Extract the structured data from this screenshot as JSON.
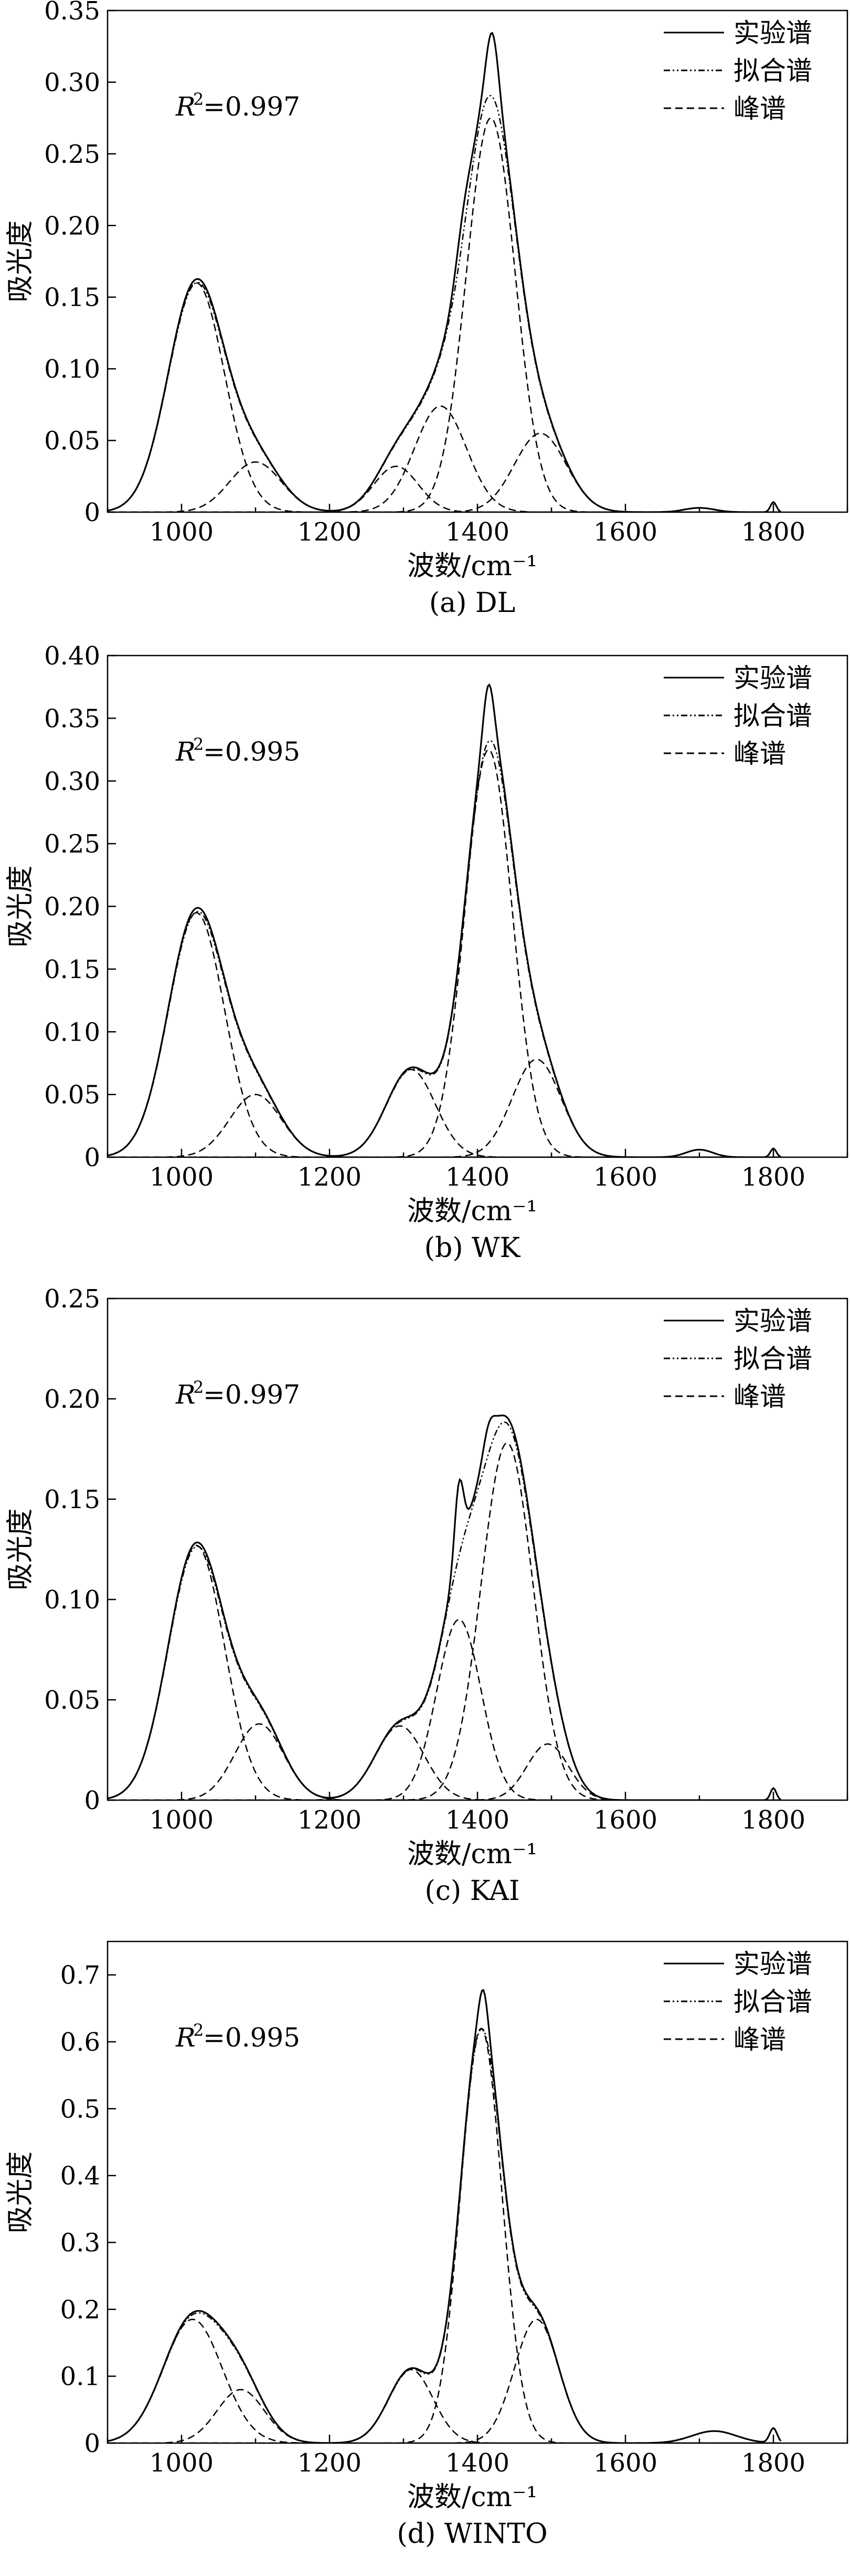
{
  "chart_data": [
    {
      "type": "line",
      "caption": "(a) DL",
      "xlabel": "波数/cm⁻¹",
      "ylabel": "吸光度",
      "xlim": [
        900,
        1900
      ],
      "ylim": [
        0,
        0.35
      ],
      "xticks": [
        1000,
        1200,
        1400,
        1600,
        1800
      ],
      "yticks": [
        0,
        0.05,
        0.1,
        0.15,
        0.2,
        0.25,
        0.3,
        0.35
      ],
      "ytick_labels": [
        "0",
        "0.05",
        "0.10",
        "0.15",
        "0.20",
        "0.25",
        "0.30",
        "0.35"
      ],
      "xtick_labels": [
        "1000",
        "1200",
        "1400",
        "1600",
        "1800"
      ],
      "r2_symbol": "R",
      "r2_sup": "2",
      "r2_value": "=0.997",
      "legend": [
        "实验谱",
        "拟合谱",
        "峰谱"
      ],
      "peaks": [
        {
          "center": 1020,
          "height": 0.16,
          "width": 38
        },
        {
          "center": 1100,
          "height": 0.035,
          "width": 35
        },
        {
          "center": 1290,
          "height": 0.032,
          "width": 30
        },
        {
          "center": 1350,
          "height": 0.074,
          "width": 35
        },
        {
          "center": 1418,
          "height": 0.275,
          "width": 33
        },
        {
          "center": 1485,
          "height": 0.055,
          "width": 35
        }
      ],
      "experimental_extras": [
        {
          "center": 1420,
          "height": 0.04,
          "width": 8
        },
        {
          "center": 1380,
          "height": 0.015,
          "width": 10
        },
        {
          "center": 1700,
          "height": 0.003,
          "width": 20
        },
        {
          "center": 1800,
          "height": 0.007,
          "width": 4
        }
      ]
    },
    {
      "type": "line",
      "caption": "(b) WK",
      "xlabel": "波数/cm⁻¹",
      "ylabel": "吸光度",
      "xlim": [
        900,
        1900
      ],
      "ylim": [
        0,
        0.4
      ],
      "xticks": [
        1000,
        1200,
        1400,
        1600,
        1800
      ],
      "yticks": [
        0,
        0.05,
        0.1,
        0.15,
        0.2,
        0.25,
        0.3,
        0.35,
        0.4
      ],
      "ytick_labels": [
        "0",
        "0.05",
        "0.10",
        "0.15",
        "0.20",
        "0.25",
        "0.30",
        "0.35",
        "0.40"
      ],
      "xtick_labels": [
        "1000",
        "1200",
        "1400",
        "1600",
        "1800"
      ],
      "r2_symbol": "R",
      "r2_sup": "2",
      "r2_value": "=0.995",
      "legend": [
        "实验谱",
        "拟合谱",
        "峰谱"
      ],
      "peaks": [
        {
          "center": 1020,
          "height": 0.195,
          "width": 38
        },
        {
          "center": 1100,
          "height": 0.05,
          "width": 35
        },
        {
          "center": 1310,
          "height": 0.07,
          "width": 33
        },
        {
          "center": 1415,
          "height": 0.325,
          "width": 32
        },
        {
          "center": 1480,
          "height": 0.078,
          "width": 33
        }
      ],
      "experimental_extras": [
        {
          "center": 1415,
          "height": 0.04,
          "width": 7
        },
        {
          "center": 1700,
          "height": 0.006,
          "width": 18
        },
        {
          "center": 1800,
          "height": 0.007,
          "width": 4
        }
      ]
    },
    {
      "type": "line",
      "caption": "(c) KAI",
      "xlabel": "波数/cm⁻¹",
      "ylabel": "吸光度",
      "xlim": [
        900,
        1900
      ],
      "ylim": [
        0,
        0.25
      ],
      "xticks": [
        1000,
        1200,
        1400,
        1600,
        1800
      ],
      "yticks": [
        0,
        0.05,
        0.1,
        0.15,
        0.2,
        0.25
      ],
      "ytick_labels": [
        "0",
        "0.05",
        "0.10",
        "0.15",
        "0.20",
        "0.25"
      ],
      "xtick_labels": [
        "1000",
        "1200",
        "1400",
        "1600",
        "1800"
      ],
      "r2_symbol": "R",
      "r2_sup": "2",
      "r2_value": "=0.997",
      "legend": [
        "实验谱",
        "拟合谱",
        "峰谱"
      ],
      "peaks": [
        {
          "center": 1020,
          "height": 0.127,
          "width": 38
        },
        {
          "center": 1105,
          "height": 0.038,
          "width": 33
        },
        {
          "center": 1295,
          "height": 0.037,
          "width": 33
        },
        {
          "center": 1375,
          "height": 0.09,
          "width": 30
        },
        {
          "center": 1440,
          "height": 0.178,
          "width": 35
        },
        {
          "center": 1495,
          "height": 0.028,
          "width": 28
        }
      ],
      "experimental_extras": [
        {
          "center": 1375,
          "height": 0.035,
          "width": 6
        },
        {
          "center": 1415,
          "height": 0.012,
          "width": 8
        },
        {
          "center": 1800,
          "height": 0.006,
          "width": 4
        }
      ]
    },
    {
      "type": "line",
      "caption": "(d) WINTO",
      "xlabel": "波数/cm⁻¹",
      "ylabel": "吸光度",
      "xlim": [
        900,
        1900
      ],
      "ylim": [
        0,
        0.75
      ],
      "xticks": [
        1000,
        1200,
        1400,
        1600,
        1800
      ],
      "yticks": [
        0,
        0.1,
        0.2,
        0.3,
        0.4,
        0.5,
        0.6,
        0.7
      ],
      "ytick_labels": [
        "0",
        "0.1",
        "0.2",
        "0.3",
        "0.4",
        "0.5",
        "0.6",
        "0.7"
      ],
      "xtick_labels": [
        "1000",
        "1200",
        "1400",
        "1600",
        "1800"
      ],
      "r2_symbol": "R",
      "r2_sup": "2",
      "r2_value": "=0.995",
      "legend": [
        "实验谱",
        "拟合谱",
        "峰谱"
      ],
      "peaks": [
        {
          "center": 1015,
          "height": 0.185,
          "width": 40
        },
        {
          "center": 1080,
          "height": 0.08,
          "width": 32
        },
        {
          "center": 1310,
          "height": 0.11,
          "width": 30
        },
        {
          "center": 1405,
          "height": 0.62,
          "width": 28
        },
        {
          "center": 1480,
          "height": 0.185,
          "width": 30
        }
      ],
      "experimental_extras": [
        {
          "center": 1408,
          "height": 0.05,
          "width": 6
        },
        {
          "center": 1720,
          "height": 0.018,
          "width": 30
        },
        {
          "center": 1800,
          "height": 0.022,
          "width": 5
        }
      ]
    }
  ]
}
